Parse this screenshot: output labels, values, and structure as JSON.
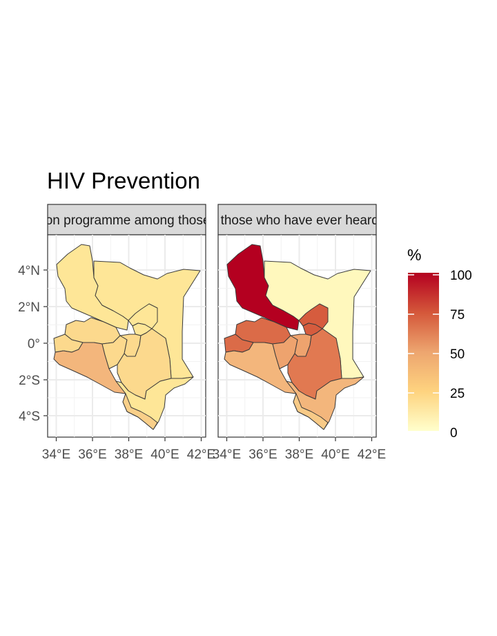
{
  "title": "HIV Prevention",
  "panels": [
    {
      "strip": "Took part in any HIV prevention programme among those who have ever heard of HIV",
      "regions": [
        {
          "id": "north",
          "value": 18
        },
        {
          "id": "east",
          "value": 18
        },
        {
          "id": "upper_north",
          "value": 18
        },
        {
          "id": "central_north",
          "value": 18
        },
        {
          "id": "west_upper",
          "value": 24
        },
        {
          "id": "west_lower",
          "value": 24
        },
        {
          "id": "west_small",
          "value": 24
        },
        {
          "id": "rift_south",
          "value": 38
        },
        {
          "id": "central_a",
          "value": 24
        },
        {
          "id": "central_b",
          "value": 24
        },
        {
          "id": "central_c",
          "value": 24
        },
        {
          "id": "southeast",
          "value": 18
        },
        {
          "id": "coast",
          "value": 28
        }
      ]
    },
    {
      "strip": "Among those who have ever heard of HIV",
      "regions": [
        {
          "id": "north",
          "value": 100
        },
        {
          "id": "east",
          "value": 5
        },
        {
          "id": "upper_north",
          "value": 70
        },
        {
          "id": "central_north",
          "value": 70
        },
        {
          "id": "west_upper",
          "value": 65
        },
        {
          "id": "west_lower",
          "value": 65
        },
        {
          "id": "west_small",
          "value": 65
        },
        {
          "id": "rift_south",
          "value": 38
        },
        {
          "id": "central_a",
          "value": 45
        },
        {
          "id": "central_b",
          "value": 45
        },
        {
          "id": "central_c",
          "value": 60
        },
        {
          "id": "southeast",
          "value": 38
        },
        {
          "id": "coast",
          "value": 30
        }
      ]
    }
  ],
  "axes": {
    "x_ticks": [
      "34°E",
      "36°E",
      "38°E",
      "40°E",
      "42°E"
    ],
    "y_ticks": [
      "4°N",
      "2°N",
      "0°",
      "2°S",
      "4°S"
    ]
  },
  "legend": {
    "title": "%",
    "ticks": [
      "100",
      "75",
      "50",
      "25",
      "0"
    ],
    "range": [
      0,
      100
    ],
    "palette": [
      "#ffffcc",
      "#fed976",
      "#feb24c",
      "#fd8d3c",
      "#f03b20",
      "#bd0026"
    ]
  },
  "colors": {
    "strip_bg": "#d9d9d9",
    "panel_border": "#333333",
    "grid": "#ebebeb"
  }
}
